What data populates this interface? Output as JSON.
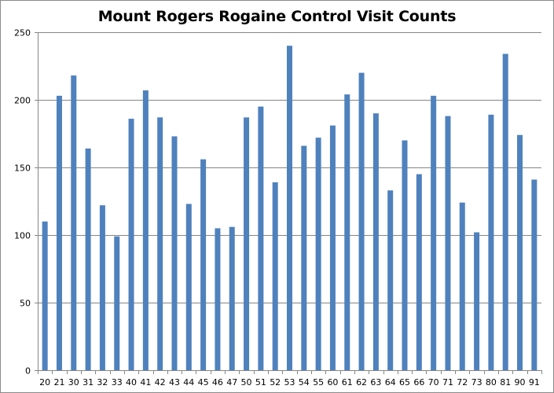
{
  "chart_data": {
    "type": "bar",
    "title": "Mount Rogers Rogaine Control Visit Counts",
    "xlabel": "",
    "ylabel": "",
    "ylim": [
      0,
      250
    ],
    "yticks": [
      0,
      50,
      100,
      150,
      200,
      250
    ],
    "grid": true,
    "legend": "none",
    "categories": [
      "20",
      "21",
      "30",
      "31",
      "32",
      "33",
      "40",
      "41",
      "42",
      "43",
      "44",
      "45",
      "46",
      "47",
      "50",
      "51",
      "52",
      "53",
      "54",
      "55",
      "60",
      "61",
      "62",
      "63",
      "64",
      "65",
      "66",
      "70",
      "71",
      "72",
      "73",
      "80",
      "81",
      "90",
      "91"
    ],
    "values": [
      110,
      203,
      218,
      164,
      122,
      99,
      186,
      207,
      187,
      173,
      123,
      156,
      105,
      106,
      187,
      195,
      139,
      240,
      166,
      172,
      181,
      204,
      220,
      190,
      133,
      170,
      145,
      203,
      188,
      124,
      102,
      189,
      234,
      174,
      141
    ]
  },
  "colors": {
    "bar": "#4f81bd",
    "grid": "#868686",
    "axis": "#868686",
    "frame": "#8a8a8a"
  }
}
